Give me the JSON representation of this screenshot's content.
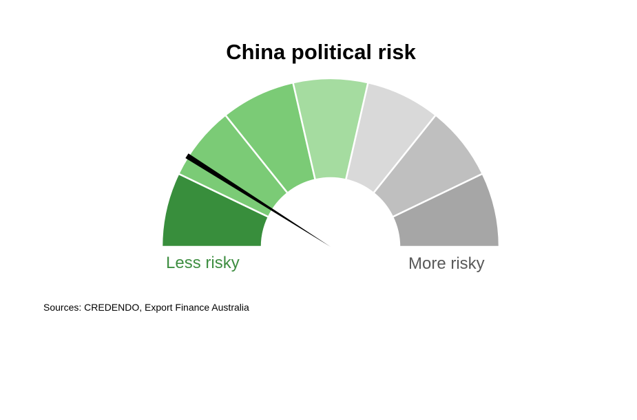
{
  "chart_data": {
    "type": "gauge",
    "title": "China political risk",
    "min_label": "Less risky",
    "max_label": "More risky",
    "segments": [
      {
        "color": "#388E3C"
      },
      {
        "color": "#7BCB76"
      },
      {
        "color": "#7BCB76"
      },
      {
        "color": "#A5DCA0"
      },
      {
        "color": "#D9D9D9"
      },
      {
        "color": "#BFBFBF"
      },
      {
        "color": "#A6A6A6"
      }
    ],
    "segment_count": 7,
    "value_fraction": 0.18,
    "needle_color": "#000000"
  },
  "labels": {
    "less_color": "#3E8E41",
    "more_color": "#595959"
  },
  "footer": {
    "sources": "Sources: CREDENDO, Export Finance Australia"
  }
}
